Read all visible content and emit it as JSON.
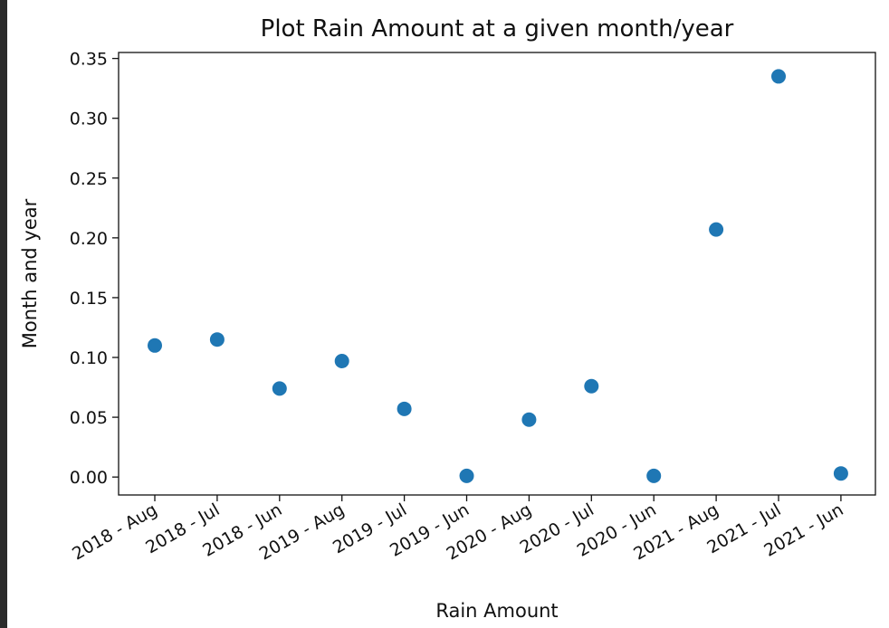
{
  "chart_data": {
    "type": "scatter",
    "title": "Plot Rain Amount at a given month/year",
    "xlabel": "Rain Amount",
    "ylabel": "Month and year",
    "categories": [
      "2018 - Aug",
      "2018 - Jul",
      "2018 - Jun",
      "2019 - Aug",
      "2019 - Jul",
      "2019 - Jun",
      "2020 - Aug",
      "2020 - Jul",
      "2020 - Jun",
      "2021 - Aug",
      "2021 - Jul",
      "2021 - Jun"
    ],
    "values": [
      0.11,
      0.115,
      0.074,
      0.097,
      0.057,
      0.001,
      0.048,
      0.076,
      0.001,
      0.207,
      0.335,
      0.003
    ],
    "ylim": [
      -0.015,
      0.355
    ],
    "yticks": [
      "0.00",
      "0.05",
      "0.10",
      "0.15",
      "0.20",
      "0.25",
      "0.30",
      "0.35"
    ],
    "grid": false,
    "marker_color": "#1f77b4"
  }
}
